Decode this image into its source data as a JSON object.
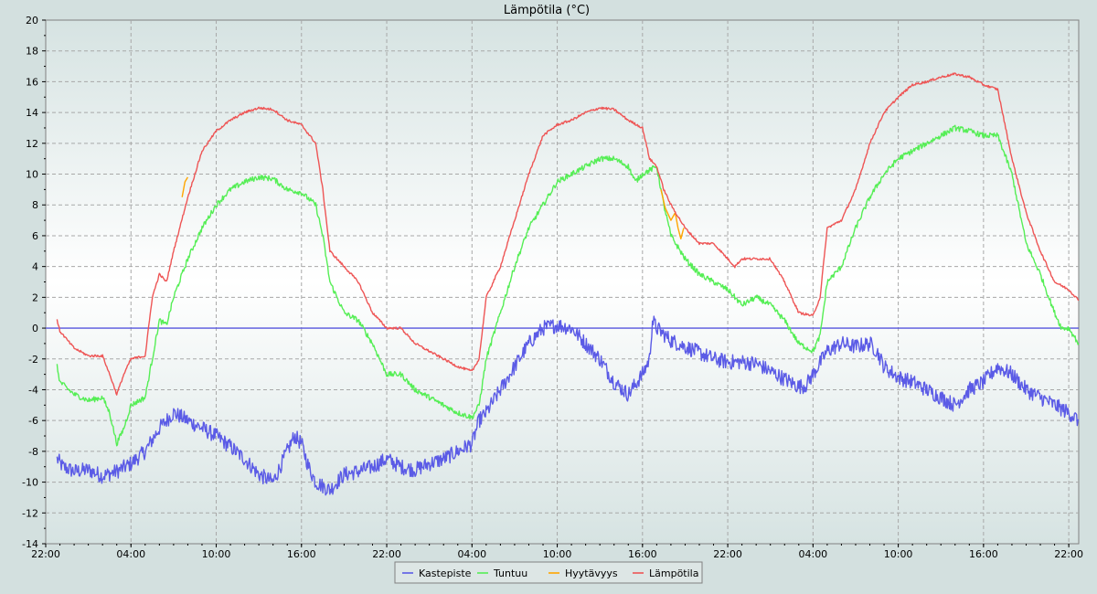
{
  "chart_data": {
    "type": "line",
    "title": "Lämpötila (°C)",
    "xlabel": "",
    "ylabel": "",
    "ylim": [
      -14,
      20
    ],
    "y_ticks": [
      -14,
      -12,
      -10,
      -8,
      -6,
      -4,
      -2,
      0,
      2,
      4,
      6,
      8,
      10,
      12,
      14,
      16,
      18,
      20
    ],
    "xlim_hours": [
      22,
      94.7
    ],
    "x_ticks": [
      {
        "h": 22,
        "label": "22:00"
      },
      {
        "h": 28,
        "label": "04:00"
      },
      {
        "h": 34,
        "label": "10:00"
      },
      {
        "h": 40,
        "label": "16:00"
      },
      {
        "h": 46,
        "label": "22:00"
      },
      {
        "h": 52,
        "label": "04:00"
      },
      {
        "h": 58,
        "label": "10:00"
      },
      {
        "h": 64,
        "label": "16:00"
      },
      {
        "h": 70,
        "label": "22:00"
      },
      {
        "h": 76,
        "label": "04:00"
      },
      {
        "h": 82,
        "label": "10:00"
      },
      {
        "h": 88,
        "label": "16:00"
      },
      {
        "h": 94,
        "label": "22:00"
      }
    ],
    "grid": true,
    "legend_position": "bottom-center",
    "reference_line": {
      "y": 0,
      "color": "#5555dd"
    },
    "series": [
      {
        "name": "Kastepiste",
        "color": "#5b5be6",
        "points": [
          [
            22.8,
            -8.5
          ],
          [
            23.2,
            -9.0
          ],
          [
            24.0,
            -9.3
          ],
          [
            25.0,
            -9.2
          ],
          [
            26.0,
            -9.6
          ],
          [
            27.0,
            -9.3
          ],
          [
            28.0,
            -8.8
          ],
          [
            29.0,
            -8.0
          ],
          [
            30.0,
            -6.5
          ],
          [
            31.0,
            -5.5
          ],
          [
            32.0,
            -6.0
          ],
          [
            33.0,
            -6.5
          ],
          [
            34.0,
            -7.0
          ],
          [
            35.0,
            -7.7
          ],
          [
            36.0,
            -8.5
          ],
          [
            37.0,
            -9.5
          ],
          [
            38.0,
            -10.0
          ],
          [
            38.5,
            -9.0
          ],
          [
            39.5,
            -7.0
          ],
          [
            40.0,
            -7.5
          ],
          [
            40.5,
            -9.0
          ],
          [
            41.0,
            -10.0
          ],
          [
            42.0,
            -10.5
          ],
          [
            43.0,
            -9.5
          ],
          [
            44.0,
            -9.3
          ],
          [
            45.0,
            -9.0
          ],
          [
            46.0,
            -8.5
          ],
          [
            47.0,
            -9.0
          ],
          [
            48.0,
            -9.2
          ],
          [
            49.0,
            -8.8
          ],
          [
            50.0,
            -8.5
          ],
          [
            51.0,
            -8.0
          ],
          [
            52.0,
            -7.5
          ],
          [
            52.5,
            -6.0
          ],
          [
            53.0,
            -5.5
          ],
          [
            54.0,
            -4.0
          ],
          [
            55.0,
            -2.5
          ],
          [
            56.0,
            -1.0
          ],
          [
            57.0,
            0.0
          ],
          [
            58.0,
            0.2
          ],
          [
            59.0,
            0.0
          ],
          [
            60.0,
            -1.0
          ],
          [
            61.0,
            -2.0
          ],
          [
            62.0,
            -3.5
          ],
          [
            63.0,
            -4.3
          ],
          [
            64.0,
            -3.0
          ],
          [
            64.5,
            -2.0
          ],
          [
            64.7,
            0.5
          ],
          [
            65.0,
            0.0
          ],
          [
            66.0,
            -0.8
          ],
          [
            67.0,
            -1.2
          ],
          [
            68.0,
            -1.6
          ],
          [
            69.0,
            -2.0
          ],
          [
            70.0,
            -2.2
          ],
          [
            71.0,
            -2.2
          ],
          [
            72.0,
            -2.3
          ],
          [
            73.0,
            -2.8
          ],
          [
            74.0,
            -3.3
          ],
          [
            75.0,
            -3.8
          ],
          [
            75.5,
            -3.7
          ],
          [
            76.0,
            -3.0
          ],
          [
            77.0,
            -1.5
          ],
          [
            78.0,
            -1.0
          ],
          [
            79.0,
            -1.2
          ],
          [
            80.0,
            -1.0
          ],
          [
            80.5,
            -1.5
          ],
          [
            81.0,
            -2.5
          ],
          [
            82.0,
            -3.2
          ],
          [
            83.0,
            -3.5
          ],
          [
            84.0,
            -4.0
          ],
          [
            85.0,
            -4.5
          ],
          [
            86.0,
            -5.0
          ],
          [
            87.0,
            -4.0
          ],
          [
            88.0,
            -3.5
          ],
          [
            89.0,
            -2.5
          ],
          [
            90.0,
            -3.0
          ],
          [
            91.0,
            -4.0
          ],
          [
            92.0,
            -4.5
          ],
          [
            93.0,
            -5.0
          ],
          [
            94.0,
            -5.5
          ],
          [
            94.7,
            -6.0
          ]
        ]
      },
      {
        "name": "Tuntuu",
        "color": "#55ee55",
        "points": [
          [
            22.8,
            -2.5
          ],
          [
            23.0,
            -3.5
          ],
          [
            24.0,
            -4.3
          ],
          [
            25.0,
            -4.7
          ],
          [
            26.0,
            -4.5
          ],
          [
            26.5,
            -5.5
          ],
          [
            27.0,
            -7.5
          ],
          [
            27.5,
            -6.5
          ],
          [
            28.0,
            -5.0
          ],
          [
            29.0,
            -4.5
          ],
          [
            29.5,
            -2.0
          ],
          [
            30.0,
            0.5
          ],
          [
            30.5,
            0.2
          ],
          [
            31.0,
            2.0
          ],
          [
            32.0,
            4.5
          ],
          [
            33.0,
            6.5
          ],
          [
            34.0,
            8.0
          ],
          [
            35.0,
            9.0
          ],
          [
            36.0,
            9.5
          ],
          [
            37.0,
            9.8
          ],
          [
            38.0,
            9.7
          ],
          [
            39.0,
            9.0
          ],
          [
            40.0,
            8.8
          ],
          [
            41.0,
            8.0
          ],
          [
            41.5,
            6.0
          ],
          [
            42.0,
            3.0
          ],
          [
            43.0,
            1.0
          ],
          [
            44.0,
            0.5
          ],
          [
            45.0,
            -1.0
          ],
          [
            46.0,
            -3.0
          ],
          [
            47.0,
            -3.0
          ],
          [
            48.0,
            -4.0
          ],
          [
            49.0,
            -4.5
          ],
          [
            50.0,
            -5.0
          ],
          [
            51.0,
            -5.5
          ],
          [
            52.0,
            -5.8
          ],
          [
            52.5,
            -5.0
          ],
          [
            53.0,
            -2.0
          ],
          [
            54.0,
            1.0
          ],
          [
            55.0,
            4.0
          ],
          [
            56.0,
            6.5
          ],
          [
            57.0,
            8.0
          ],
          [
            58.0,
            9.5
          ],
          [
            59.0,
            10.0
          ],
          [
            60.0,
            10.5
          ],
          [
            61.0,
            11.0
          ],
          [
            62.0,
            11.0
          ],
          [
            63.0,
            10.5
          ],
          [
            63.5,
            9.5
          ],
          [
            64.0,
            10.0
          ],
          [
            65.0,
            10.5
          ],
          [
            65.5,
            8.0
          ],
          [
            66.0,
            6.0
          ],
          [
            67.0,
            4.5
          ],
          [
            68.0,
            3.5
          ],
          [
            69.0,
            3.0
          ],
          [
            70.0,
            2.5
          ],
          [
            71.0,
            1.5
          ],
          [
            72.0,
            2.0
          ],
          [
            73.0,
            1.5
          ],
          [
            74.0,
            0.5
          ],
          [
            75.0,
            -1.0
          ],
          [
            76.0,
            -1.5
          ],
          [
            76.5,
            -0.5
          ],
          [
            77.0,
            3.0
          ],
          [
            78.0,
            4.0
          ],
          [
            79.0,
            6.5
          ],
          [
            80.0,
            8.5
          ],
          [
            81.0,
            10.0
          ],
          [
            82.0,
            11.0
          ],
          [
            83.0,
            11.5
          ],
          [
            84.0,
            12.0
          ],
          [
            85.0,
            12.5
          ],
          [
            86.0,
            13.0
          ],
          [
            87.0,
            12.8
          ],
          [
            88.0,
            12.5
          ],
          [
            89.0,
            12.5
          ],
          [
            90.0,
            10.0
          ],
          [
            91.0,
            5.5
          ],
          [
            92.0,
            3.5
          ],
          [
            93.0,
            1.0
          ],
          [
            93.5,
            0.0
          ],
          [
            94.0,
            0.0
          ],
          [
            94.7,
            -1.0
          ]
        ]
      },
      {
        "name": "Hyytävyys",
        "color": "#ffa500",
        "segments": [
          [
            [
              31.6,
              8.5
            ],
            [
              31.8,
              9.5
            ],
            [
              32.0,
              9.8
            ]
          ],
          [
            [
              65.3,
              9.0
            ],
            [
              65.6,
              7.8
            ],
            [
              66.0,
              7.0
            ],
            [
              66.3,
              7.5
            ],
            [
              66.5,
              6.5
            ],
            [
              66.7,
              5.8
            ],
            [
              66.9,
              6.5
            ]
          ]
        ]
      },
      {
        "name": "Lämpötila",
        "color": "#ee5555",
        "points": [
          [
            22.8,
            0.5
          ],
          [
            23.0,
            -0.2
          ],
          [
            24.0,
            -1.3
          ],
          [
            25.0,
            -1.8
          ],
          [
            26.0,
            -1.8
          ],
          [
            26.5,
            -3.0
          ],
          [
            27.0,
            -4.3
          ],
          [
            27.5,
            -3.0
          ],
          [
            28.0,
            -2.0
          ],
          [
            29.0,
            -1.8
          ],
          [
            29.5,
            2.0
          ],
          [
            30.0,
            3.5
          ],
          [
            30.5,
            3.0
          ],
          [
            31.0,
            5.0
          ],
          [
            32.0,
            8.5
          ],
          [
            33.0,
            11.5
          ],
          [
            34.0,
            12.8
          ],
          [
            35.0,
            13.5
          ],
          [
            36.0,
            14.0
          ],
          [
            37.0,
            14.3
          ],
          [
            38.0,
            14.2
          ],
          [
            39.0,
            13.5
          ],
          [
            40.0,
            13.2
          ],
          [
            41.0,
            12.0
          ],
          [
            41.5,
            9.0
          ],
          [
            42.0,
            5.0
          ],
          [
            43.0,
            4.0
          ],
          [
            44.0,
            3.0
          ],
          [
            45.0,
            1.0
          ],
          [
            46.0,
            0.0
          ],
          [
            47.0,
            0.0
          ],
          [
            48.0,
            -1.0
          ],
          [
            49.0,
            -1.5
          ],
          [
            50.0,
            -2.0
          ],
          [
            51.0,
            -2.5
          ],
          [
            52.0,
            -2.8
          ],
          [
            52.5,
            -2.0
          ],
          [
            53.0,
            2.0
          ],
          [
            54.0,
            4.0
          ],
          [
            55.0,
            7.0
          ],
          [
            56.0,
            10.0
          ],
          [
            57.0,
            12.5
          ],
          [
            58.0,
            13.2
          ],
          [
            59.0,
            13.5
          ],
          [
            60.0,
            14.0
          ],
          [
            61.0,
            14.3
          ],
          [
            62.0,
            14.2
          ],
          [
            63.0,
            13.5
          ],
          [
            64.0,
            13.0
          ],
          [
            64.5,
            11.0
          ],
          [
            65.0,
            10.5
          ],
          [
            65.5,
            9.0
          ],
          [
            66.0,
            8.0
          ],
          [
            67.0,
            6.5
          ],
          [
            68.0,
            5.5
          ],
          [
            69.0,
            5.5
          ],
          [
            70.0,
            4.5
          ],
          [
            70.5,
            4.0
          ],
          [
            71.0,
            4.5
          ],
          [
            72.0,
            4.5
          ],
          [
            73.0,
            4.5
          ],
          [
            74.0,
            3.0
          ],
          [
            75.0,
            1.0
          ],
          [
            76.0,
            0.8
          ],
          [
            76.5,
            2.0
          ],
          [
            77.0,
            6.5
          ],
          [
            78.0,
            7.0
          ],
          [
            79.0,
            9.0
          ],
          [
            80.0,
            12.0
          ],
          [
            81.0,
            14.0
          ],
          [
            82.0,
            15.0
          ],
          [
            83.0,
            15.8
          ],
          [
            84.0,
            16.0
          ],
          [
            85.0,
            16.3
          ],
          [
            86.0,
            16.5
          ],
          [
            87.0,
            16.3
          ],
          [
            88.0,
            15.8
          ],
          [
            89.0,
            15.5
          ],
          [
            90.0,
            11.0
          ],
          [
            91.0,
            7.5
          ],
          [
            92.0,
            5.0
          ],
          [
            93.0,
            3.0
          ],
          [
            94.0,
            2.5
          ],
          [
            94.7,
            1.8
          ]
        ]
      }
    ]
  }
}
